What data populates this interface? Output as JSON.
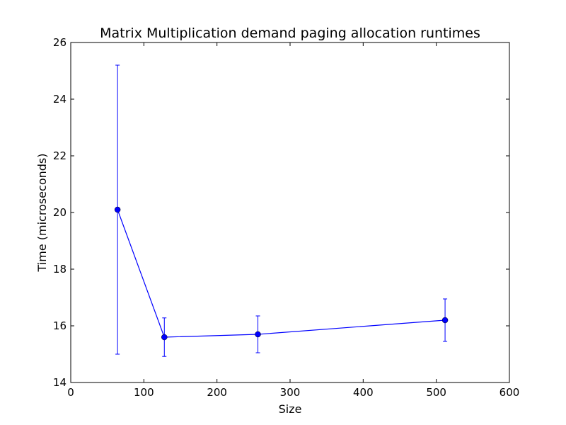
{
  "chart_data": {
    "type": "line",
    "title": "Matrix Multiplication demand paging allocation runtimes",
    "xlabel": "Size",
    "ylabel": "Time (microseconds)",
    "xlim": [
      0,
      600
    ],
    "ylim": [
      14,
      26
    ],
    "xticks": [
      0,
      100,
      200,
      300,
      400,
      500,
      600
    ],
    "yticks": [
      14,
      16,
      18,
      20,
      22,
      24,
      26
    ],
    "grid": false,
    "series": [
      {
        "color": "#0000ff",
        "marker": "circle",
        "x": [
          64,
          128,
          256,
          512
        ],
        "y": [
          20.1,
          15.6,
          15.7,
          16.2
        ],
        "error": [
          5.1,
          0.68,
          0.65,
          0.75
        ]
      }
    ]
  }
}
